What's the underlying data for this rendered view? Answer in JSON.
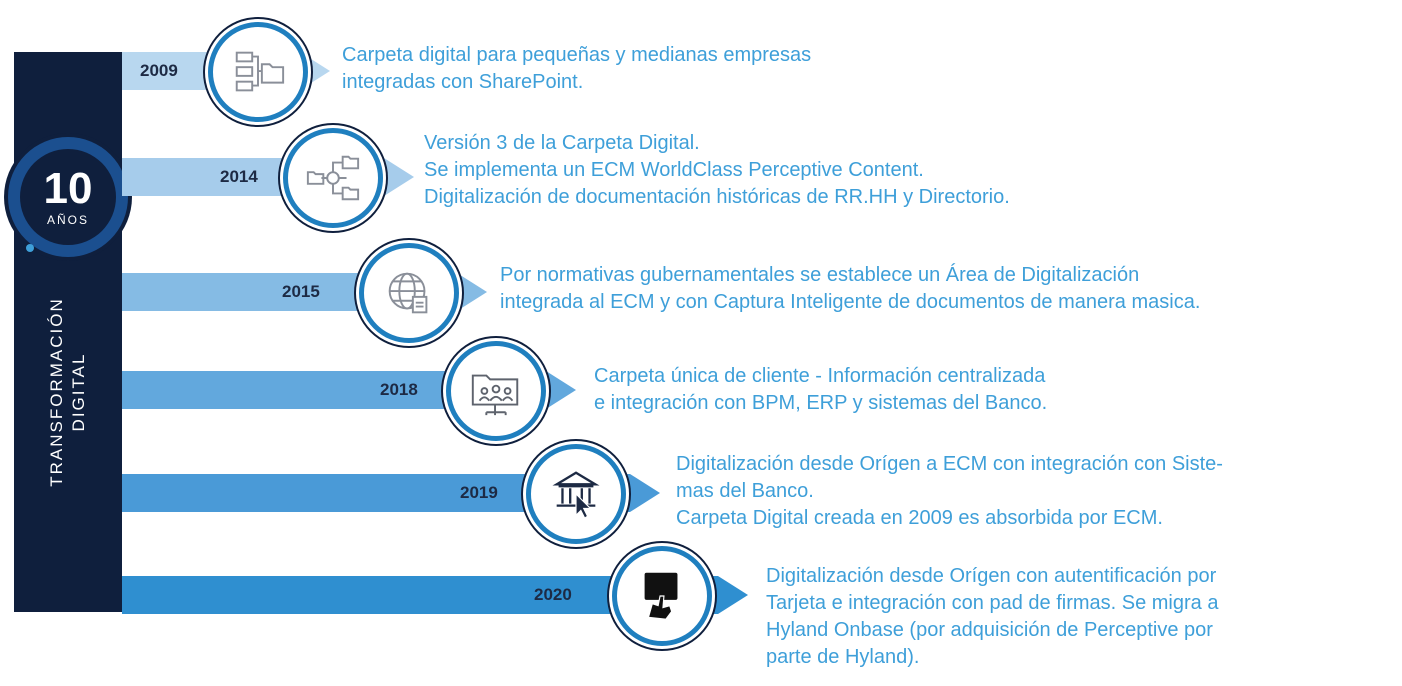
{
  "badge": {
    "number": "10",
    "label": "AÑOS"
  },
  "sidebar": {
    "title_line1": "TRANSFORMACIÓN",
    "title_line2": "DIGITAL"
  },
  "colors": {
    "navy": "#0f1f3d",
    "accent": "#3e9fd9",
    "bar_light": "#b8d7ef",
    "bar_dark": "#2f8fd0"
  },
  "milestones": [
    {
      "year": "2009",
      "icon": "folder-network-icon",
      "text": "Carpeta digital para pequeñas y medianas empresas\nintegradas con SharePoint."
    },
    {
      "year": "2014",
      "icon": "folder-hub-icon",
      "text": "Versión 3 de la Carpeta Digital.\nSe implementa un ECM WorldClass Perceptive Content.\nDigitalización de documentación históricas de RR.HH y Directorio."
    },
    {
      "year": "2015",
      "icon": "globe-document-icon",
      "text": "Por normativas gubernamentales se establece un Área de Digitalización\nintegrada al ECM y con Captura Inteligente de documentos de manera masica."
    },
    {
      "year": "2018",
      "icon": "folder-users-icon",
      "text": "Carpeta única de cliente - Información centralizada\ne integración con BPM, ERP y sistemas del Banco."
    },
    {
      "year": "2019",
      "icon": "bank-cursor-icon",
      "text": "Digitalización desde Orígen a ECM con integración con Siste-\nmas del Banco.\nCarpeta Digital creada en 2009 es absorbida por ECM."
    },
    {
      "year": "2020",
      "icon": "card-signature-icon",
      "text": "Digitalización desde Orígen con autentificación por\nTarjeta e integración con pad de firmas. Se migra a\nHyland Onbase (por adquisición de Perceptive por\nparte de Hyland)."
    }
  ]
}
